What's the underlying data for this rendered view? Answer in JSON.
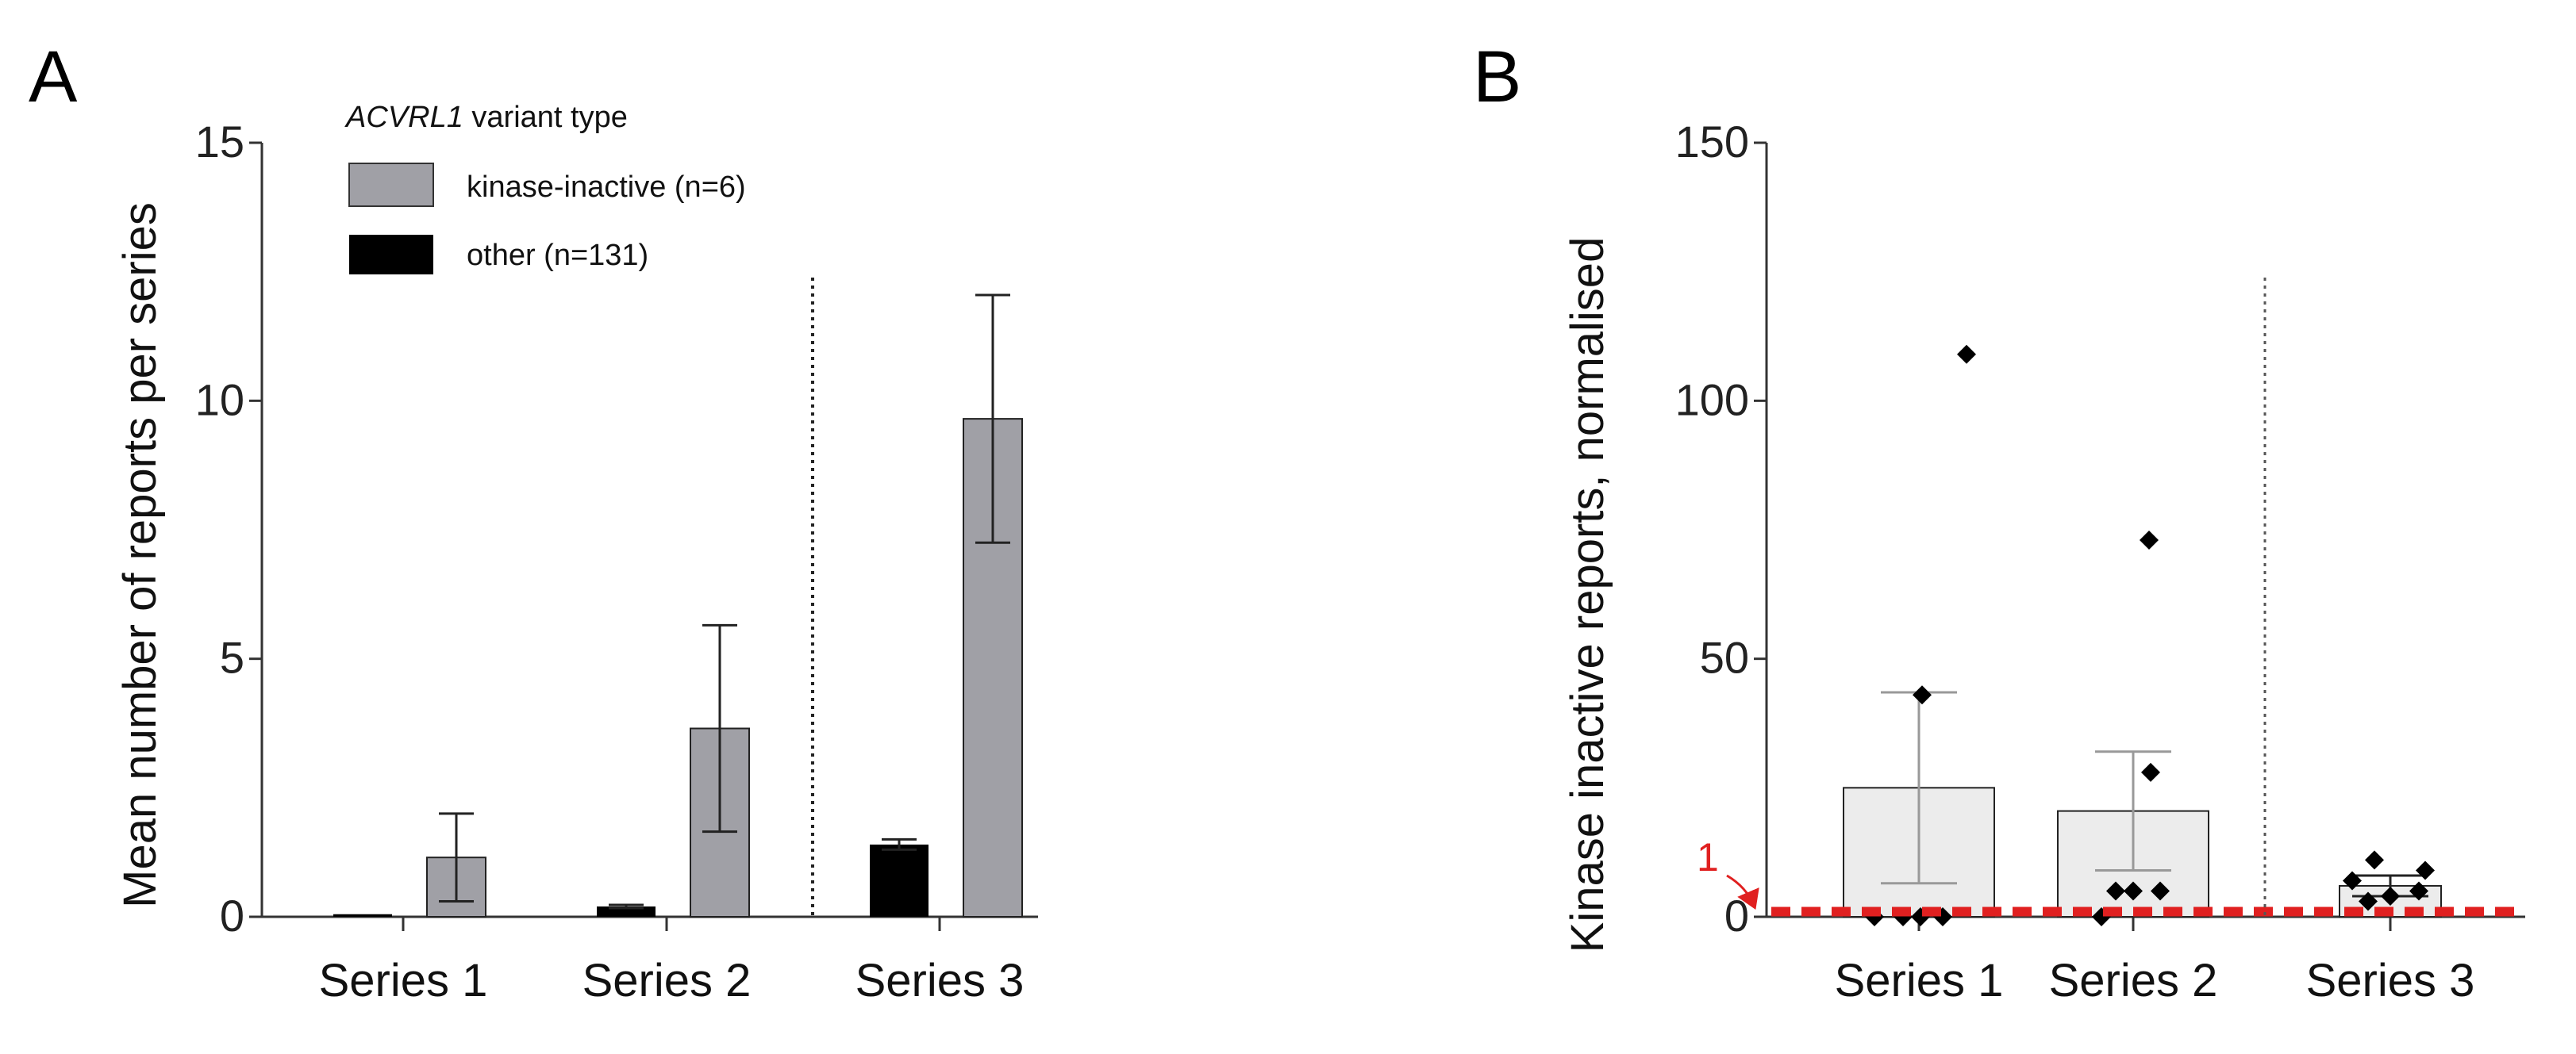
{
  "chart_data": [
    {
      "panel": "A",
      "type": "bar",
      "ylabel": "Mean number of reports per series",
      "ylim": [
        0,
        15
      ],
      "yticks": [
        0,
        5,
        10,
        15
      ],
      "categories": [
        "Series 1",
        "Series 2",
        "Series 3"
      ],
      "legend": {
        "title_italic": "ACVRL1",
        "title_rest": " variant type",
        "placement": "top-left"
      },
      "series": [
        {
          "name": "other (n=131)",
          "color": "#000000",
          "values": [
            0.05,
            0.2,
            1.4
          ],
          "error": [
            0,
            0.03,
            0.1
          ]
        },
        {
          "name": "kinase-inactive (n=6)",
          "color": "#a0a0a6",
          "values": [
            1.15,
            3.65,
            9.65
          ],
          "error": [
            0.85,
            2.0,
            2.4
          ]
        }
      ],
      "divider": "dotted line between Series 2 and Series 3"
    },
    {
      "panel": "B",
      "type": "bar",
      "ylabel": "Kinase inactive reports, normalised",
      "ylim": [
        0,
        150
      ],
      "yticks": [
        0,
        50,
        100,
        150
      ],
      "categories": [
        "Series 1",
        "Series 2",
        "Series 3"
      ],
      "bar_color": "#ececec",
      "values": [
        25,
        20.5,
        6
      ],
      "error": [
        18.5,
        11.5,
        2
      ],
      "points": [
        [
          0,
          0,
          0,
          0,
          43,
          109
        ],
        [
          0,
          5,
          5,
          28,
          73,
          5
        ],
        [
          3,
          4,
          5,
          7,
          9,
          11
        ]
      ],
      "reference_line": {
        "value": 1,
        "label": "1",
        "color": "#e02020"
      },
      "divider": "dotted line between Series 2 and Series 3"
    }
  ]
}
